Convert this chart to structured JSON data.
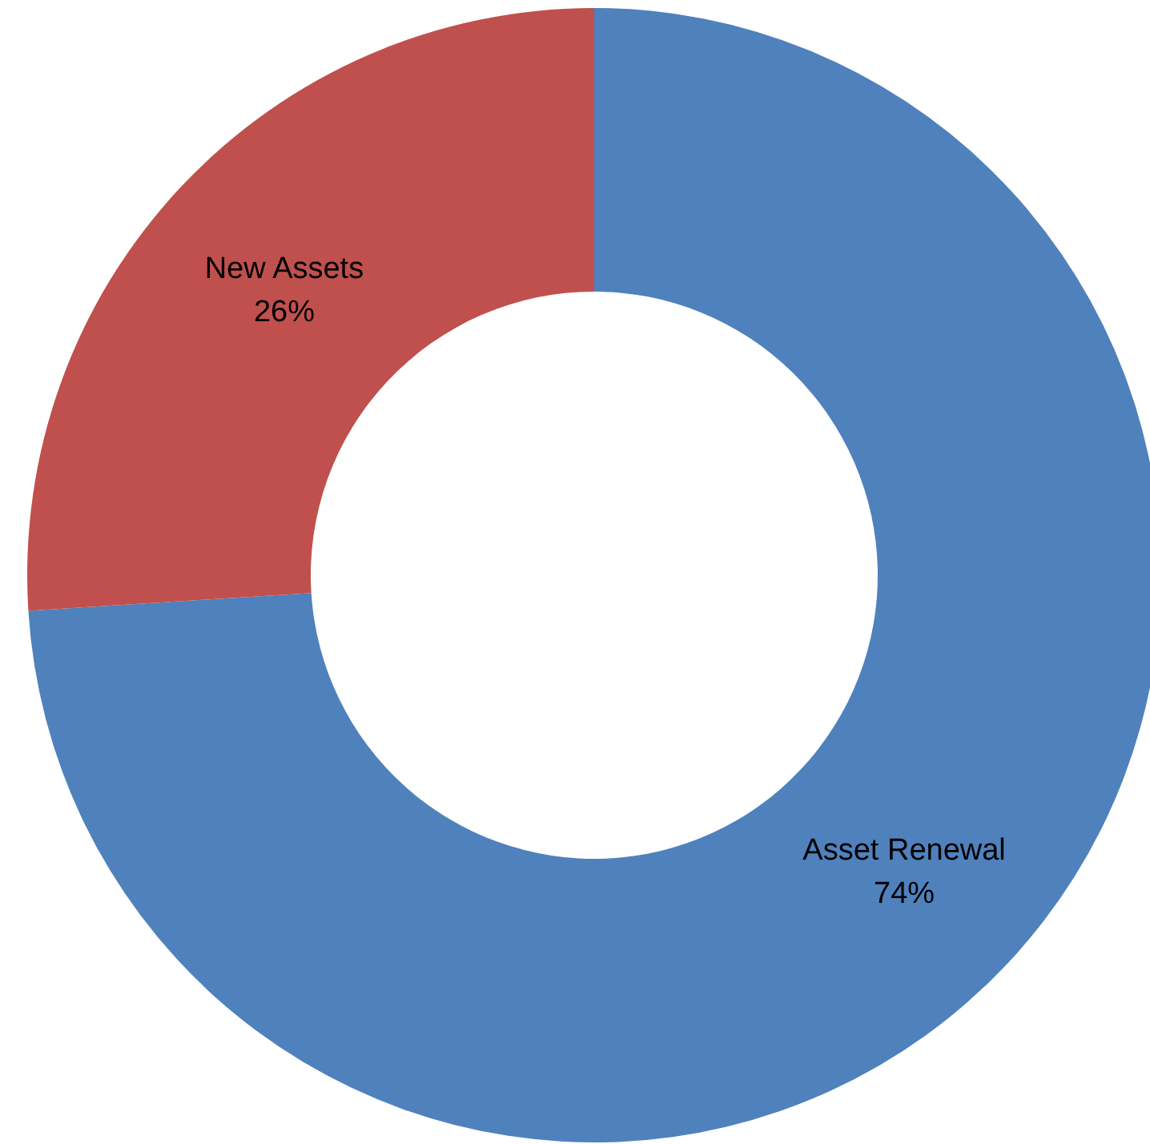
{
  "chart_data": {
    "type": "donut",
    "categories": [
      "Asset Renewal",
      "New Assets"
    ],
    "values": [
      74,
      26
    ],
    "colors": [
      "#4f81bd",
      "#c0504d"
    ],
    "value_labels": [
      "74%",
      "26%"
    ],
    "legend": false
  }
}
